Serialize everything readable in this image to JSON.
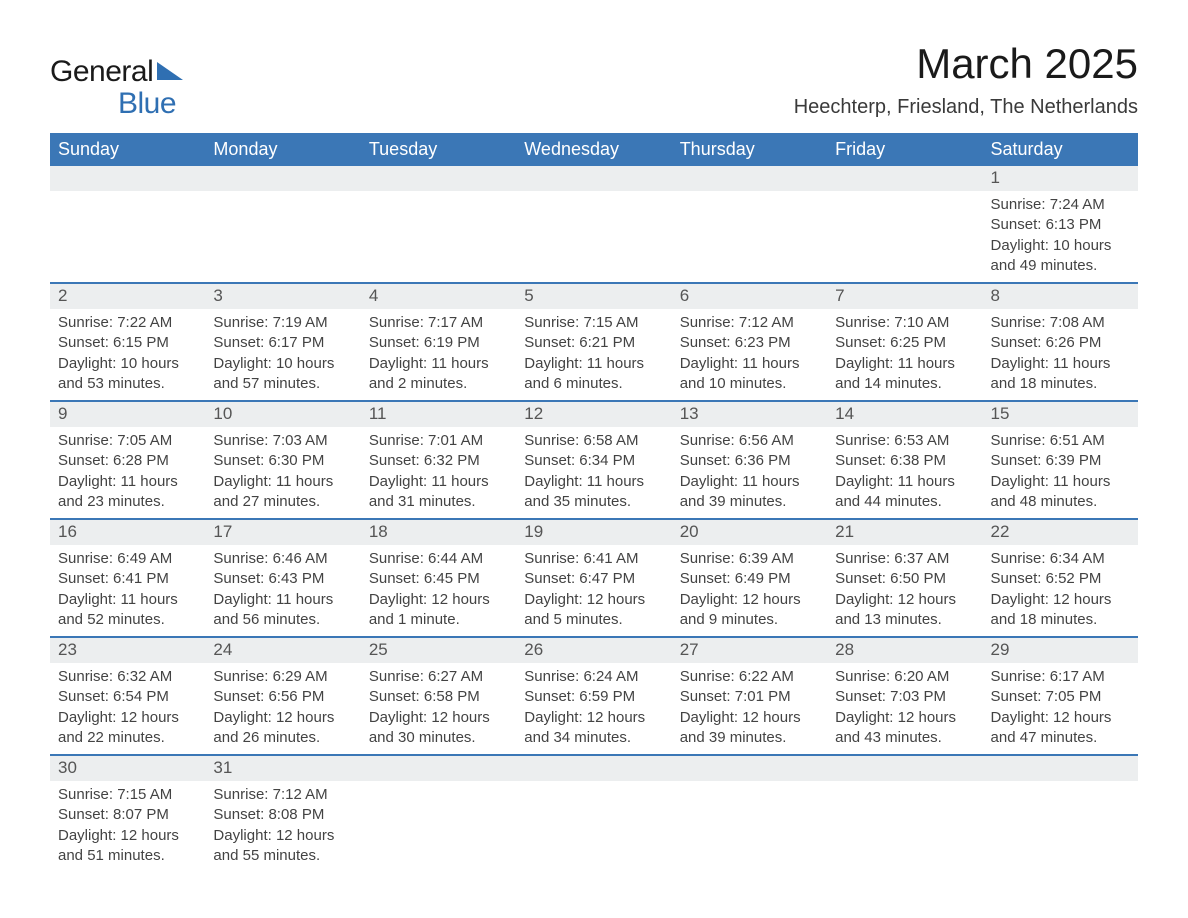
{
  "brand": {
    "word1": "General",
    "word2": "Blue",
    "color_blue": "#2f6fb2",
    "header_bg": "#3b77b6"
  },
  "title": "March 2025",
  "location": "Heechterp, Friesland, The Netherlands",
  "weekdays": [
    "Sunday",
    "Monday",
    "Tuesday",
    "Wednesday",
    "Thursday",
    "Friday",
    "Saturday"
  ],
  "layout": {
    "first_weekday_index": 6,
    "days_in_month": 31
  },
  "colors": {
    "header_bg": "#3b77b6",
    "header_text": "#ffffff",
    "daynum_bg": "#eceeef",
    "row_separator": "#3b77b6",
    "body_text": "#434343",
    "page_bg": "#ffffff"
  },
  "typography": {
    "title_fontsize": 42,
    "location_fontsize": 20,
    "weekday_fontsize": 18,
    "daynum_fontsize": 17,
    "body_fontsize": 15
  },
  "days": {
    "1": {
      "sunrise": "7:24 AM",
      "sunset": "6:13 PM",
      "daylight": "10 hours and 49 minutes."
    },
    "2": {
      "sunrise": "7:22 AM",
      "sunset": "6:15 PM",
      "daylight": "10 hours and 53 minutes."
    },
    "3": {
      "sunrise": "7:19 AM",
      "sunset": "6:17 PM",
      "daylight": "10 hours and 57 minutes."
    },
    "4": {
      "sunrise": "7:17 AM",
      "sunset": "6:19 PM",
      "daylight": "11 hours and 2 minutes."
    },
    "5": {
      "sunrise": "7:15 AM",
      "sunset": "6:21 PM",
      "daylight": "11 hours and 6 minutes."
    },
    "6": {
      "sunrise": "7:12 AM",
      "sunset": "6:23 PM",
      "daylight": "11 hours and 10 minutes."
    },
    "7": {
      "sunrise": "7:10 AM",
      "sunset": "6:25 PM",
      "daylight": "11 hours and 14 minutes."
    },
    "8": {
      "sunrise": "7:08 AM",
      "sunset": "6:26 PM",
      "daylight": "11 hours and 18 minutes."
    },
    "9": {
      "sunrise": "7:05 AM",
      "sunset": "6:28 PM",
      "daylight": "11 hours and 23 minutes."
    },
    "10": {
      "sunrise": "7:03 AM",
      "sunset": "6:30 PM",
      "daylight": "11 hours and 27 minutes."
    },
    "11": {
      "sunrise": "7:01 AM",
      "sunset": "6:32 PM",
      "daylight": "11 hours and 31 minutes."
    },
    "12": {
      "sunrise": "6:58 AM",
      "sunset": "6:34 PM",
      "daylight": "11 hours and 35 minutes."
    },
    "13": {
      "sunrise": "6:56 AM",
      "sunset": "6:36 PM",
      "daylight": "11 hours and 39 minutes."
    },
    "14": {
      "sunrise": "6:53 AM",
      "sunset": "6:38 PM",
      "daylight": "11 hours and 44 minutes."
    },
    "15": {
      "sunrise": "6:51 AM",
      "sunset": "6:39 PM",
      "daylight": "11 hours and 48 minutes."
    },
    "16": {
      "sunrise": "6:49 AM",
      "sunset": "6:41 PM",
      "daylight": "11 hours and 52 minutes."
    },
    "17": {
      "sunrise": "6:46 AM",
      "sunset": "6:43 PM",
      "daylight": "11 hours and 56 minutes."
    },
    "18": {
      "sunrise": "6:44 AM",
      "sunset": "6:45 PM",
      "daylight": "12 hours and 1 minute."
    },
    "19": {
      "sunrise": "6:41 AM",
      "sunset": "6:47 PM",
      "daylight": "12 hours and 5 minutes."
    },
    "20": {
      "sunrise": "6:39 AM",
      "sunset": "6:49 PM",
      "daylight": "12 hours and 9 minutes."
    },
    "21": {
      "sunrise": "6:37 AM",
      "sunset": "6:50 PM",
      "daylight": "12 hours and 13 minutes."
    },
    "22": {
      "sunrise": "6:34 AM",
      "sunset": "6:52 PM",
      "daylight": "12 hours and 18 minutes."
    },
    "23": {
      "sunrise": "6:32 AM",
      "sunset": "6:54 PM",
      "daylight": "12 hours and 22 minutes."
    },
    "24": {
      "sunrise": "6:29 AM",
      "sunset": "6:56 PM",
      "daylight": "12 hours and 26 minutes."
    },
    "25": {
      "sunrise": "6:27 AM",
      "sunset": "6:58 PM",
      "daylight": "12 hours and 30 minutes."
    },
    "26": {
      "sunrise": "6:24 AM",
      "sunset": "6:59 PM",
      "daylight": "12 hours and 34 minutes."
    },
    "27": {
      "sunrise": "6:22 AM",
      "sunset": "7:01 PM",
      "daylight": "12 hours and 39 minutes."
    },
    "28": {
      "sunrise": "6:20 AM",
      "sunset": "7:03 PM",
      "daylight": "12 hours and 43 minutes."
    },
    "29": {
      "sunrise": "6:17 AM",
      "sunset": "7:05 PM",
      "daylight": "12 hours and 47 minutes."
    },
    "30": {
      "sunrise": "7:15 AM",
      "sunset": "8:07 PM",
      "daylight": "12 hours and 51 minutes."
    },
    "31": {
      "sunrise": "7:12 AM",
      "sunset": "8:08 PM",
      "daylight": "12 hours and 55 minutes."
    }
  },
  "labels": {
    "sunrise": "Sunrise:",
    "sunset": "Sunset:",
    "daylight": "Daylight:"
  }
}
